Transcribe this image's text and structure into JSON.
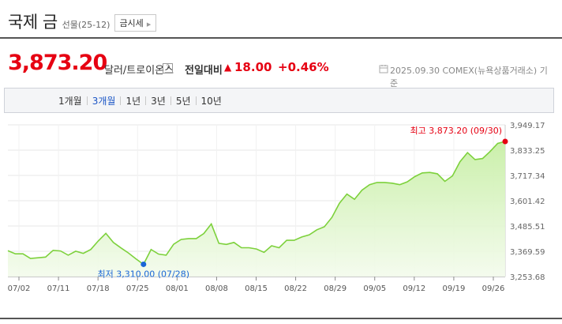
{
  "header": {
    "title": "국제 금",
    "subtitle": "선물(25-12)",
    "market_button": "금시세"
  },
  "price": {
    "value": "3,873.20",
    "unit": "달러/트로이온스",
    "help": "?",
    "change_label": "전일대비",
    "direction_symbol": "▲",
    "change": "18.00",
    "change_pct": "+0.46%",
    "basis": "2025.09.30  COMEX(뉴욕상품거래소) 기준",
    "accent_color": "#e60012"
  },
  "tabs": [
    {
      "label": "1개월",
      "active": false
    },
    {
      "label": "3개월",
      "active": true
    },
    {
      "label": "1년",
      "active": false
    },
    {
      "label": "3년",
      "active": false
    },
    {
      "label": "5년",
      "active": false
    },
    {
      "label": "10년",
      "active": false
    }
  ],
  "chart_data": {
    "type": "area",
    "x_tick_labels": [
      "07/02",
      "07/11",
      "07/18",
      "07/25",
      "08/01",
      "08/08",
      "08/15",
      "08/22",
      "08/29",
      "09/05",
      "09/12",
      "09/19",
      "09/26"
    ],
    "y_tick_labels": [
      "3,949.17",
      "3,833.25",
      "3,717.34",
      "3,601.42",
      "3,485.51",
      "3,369.59",
      "3,253.68"
    ],
    "ylim": [
      3253.68,
      3949.17
    ],
    "grid": true,
    "line_color": "#7dd13c",
    "fill_color": "#c8efa6",
    "values": [
      3372,
      3358,
      3358,
      3337,
      3340,
      3343,
      3374,
      3371,
      3352,
      3370,
      3360,
      3378,
      3417,
      3452,
      3410,
      3385,
      3362,
      3335,
      3310,
      3378,
      3357,
      3352,
      3402,
      3424,
      3428,
      3428,
      3451,
      3495,
      3406,
      3401,
      3410,
      3386,
      3386,
      3380,
      3365,
      3395,
      3386,
      3420,
      3420,
      3435,
      3445,
      3468,
      3482,
      3525,
      3590,
      3632,
      3608,
      3650,
      3675,
      3685,
      3685,
      3682,
      3675,
      3688,
      3712,
      3729,
      3731,
      3725,
      3690,
      3715,
      3780,
      3822,
      3790,
      3795,
      3827,
      3864,
      3873.2
    ],
    "max_label": "최고 3,873.20 (09/30)",
    "min_label": "최저 3,310.00 (07/28)",
    "max_value": 3873.2,
    "min_value": 3310.0
  }
}
